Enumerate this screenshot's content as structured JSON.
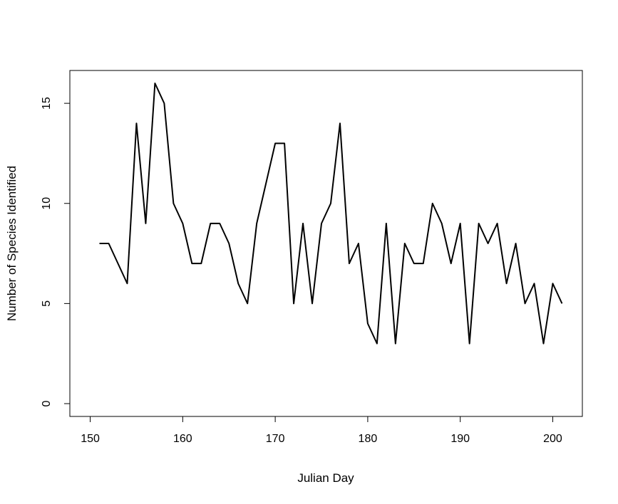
{
  "chart_data": {
    "type": "line",
    "title": "",
    "xlabel": "Julian Day",
    "ylabel": "Number of Species Identified",
    "xlim": [
      147.8,
      203.2
    ],
    "ylim": [
      -0.64,
      16.64
    ],
    "xticks": [
      150,
      160,
      170,
      180,
      190,
      200
    ],
    "yticks": [
      0,
      5,
      10,
      15
    ],
    "grid": false,
    "legend": "none",
    "line_color": "#000000",
    "x": [
      151,
      152,
      153,
      154,
      155,
      156,
      157,
      158,
      159,
      160,
      161,
      162,
      163,
      164,
      165,
      166,
      167,
      168,
      169,
      170,
      171,
      172,
      173,
      174,
      175,
      176,
      177,
      178,
      179,
      180,
      181,
      182,
      183,
      184,
      185,
      186,
      187,
      188,
      189,
      190,
      191,
      192,
      193,
      194,
      195,
      196,
      197,
      198,
      199,
      200,
      201
    ],
    "series": [
      {
        "values": [
          8,
          8,
          7,
          6,
          14,
          9,
          16,
          15,
          10,
          9,
          7,
          7,
          9,
          9,
          8,
          6,
          5,
          9,
          11,
          13,
          13,
          5,
          9,
          5,
          9,
          10,
          14,
          7,
          8,
          4,
          3,
          9,
          3,
          8,
          7,
          7,
          10,
          9,
          7,
          9,
          3,
          9,
          8,
          9,
          6,
          8,
          5,
          6,
          3,
          6,
          5
        ]
      }
    ]
  }
}
